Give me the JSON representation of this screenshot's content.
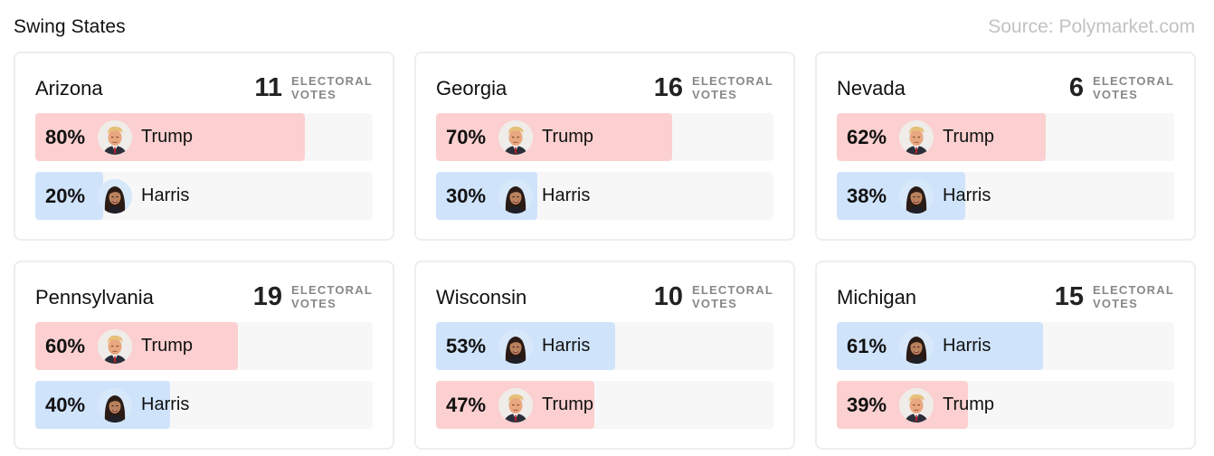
{
  "header": {
    "title": "Swing States",
    "source": "Source: Polymarket.com"
  },
  "ev_label_line1": "ELECTORAL",
  "ev_label_line2": "VOTES",
  "colors": {
    "trump": "#fcd0d0",
    "harris": "#cfe3fb",
    "track": "#f7f7f7"
  },
  "states": [
    {
      "name": "Arizona",
      "ev": "11",
      "rows": [
        {
          "pct": "80%",
          "value": 80,
          "candidate": "Trump",
          "party": "trump"
        },
        {
          "pct": "20%",
          "value": 20,
          "candidate": "Harris",
          "party": "harris"
        }
      ]
    },
    {
      "name": "Georgia",
      "ev": "16",
      "rows": [
        {
          "pct": "70%",
          "value": 70,
          "candidate": "Trump",
          "party": "trump"
        },
        {
          "pct": "30%",
          "value": 30,
          "candidate": "Harris",
          "party": "harris"
        }
      ]
    },
    {
      "name": "Nevada",
      "ev": "6",
      "rows": [
        {
          "pct": "62%",
          "value": 62,
          "candidate": "Trump",
          "party": "trump"
        },
        {
          "pct": "38%",
          "value": 38,
          "candidate": "Harris",
          "party": "harris"
        }
      ]
    },
    {
      "name": "Pennsylvania",
      "ev": "19",
      "rows": [
        {
          "pct": "60%",
          "value": 60,
          "candidate": "Trump",
          "party": "trump"
        },
        {
          "pct": "40%",
          "value": 40,
          "candidate": "Harris",
          "party": "harris"
        }
      ]
    },
    {
      "name": "Wisconsin",
      "ev": "10",
      "rows": [
        {
          "pct": "53%",
          "value": 53,
          "candidate": "Harris",
          "party": "harris"
        },
        {
          "pct": "47%",
          "value": 47,
          "candidate": "Trump",
          "party": "trump"
        }
      ]
    },
    {
      "name": "Michigan",
      "ev": "15",
      "rows": [
        {
          "pct": "61%",
          "value": 61,
          "candidate": "Harris",
          "party": "harris"
        },
        {
          "pct": "39%",
          "value": 39,
          "candidate": "Trump",
          "party": "trump"
        }
      ]
    }
  ]
}
